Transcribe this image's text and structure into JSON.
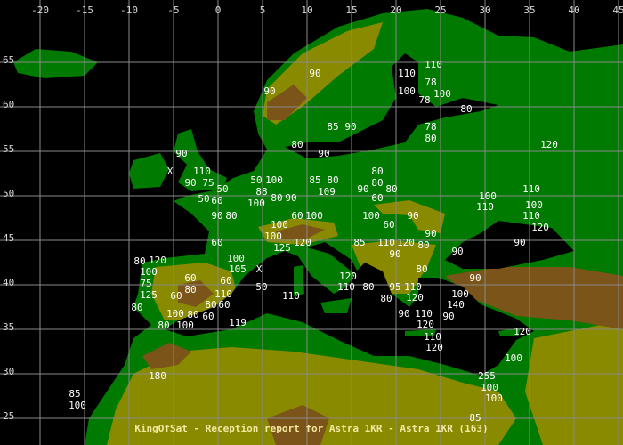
{
  "caption": "KingOfSat - Reception report for Astra 1KR - Astra 1KR (163)",
  "colors": {
    "water": "#000000",
    "lowland": "#007a00",
    "darkland": "#006000",
    "upland": "#8a8a00",
    "mountain": "#7a5418",
    "grid": "#8a8a8a",
    "label": "#ffffff",
    "caption": "#f4e8a0"
  },
  "grid": {
    "longitudes": [
      "-20",
      "-15",
      "-10",
      "-5",
      "0",
      "5",
      "10",
      "15",
      "20",
      "25",
      "30",
      "35",
      "40",
      "45"
    ],
    "latitudes": [
      "65",
      "60",
      "55",
      "50",
      "45",
      "40",
      "35",
      "30",
      "25"
    ]
  },
  "reports": [
    {
      "v": "110",
      "lon": 24.2,
      "lat": 64.8
    },
    {
      "v": "90",
      "lon": 10.9,
      "lat": 63.8
    },
    {
      "v": "110",
      "lon": 21.2,
      "lat": 63.8
    },
    {
      "v": "78",
      "lon": 23.9,
      "lat": 62.8
    },
    {
      "v": "90",
      "lon": 5.8,
      "lat": 61.8
    },
    {
      "v": "100",
      "lon": 21.2,
      "lat": 61.8
    },
    {
      "v": "100",
      "lon": 25.2,
      "lat": 61.8
    },
    {
      "v": "78",
      "lon": 22.9,
      "lat": 60.8
    },
    {
      "v": "80",
      "lon": 27.9,
      "lat": 59.8
    },
    {
      "v": "85",
      "lon": 12.9,
      "lat": 57.8
    },
    {
      "v": "90",
      "lon": 14.9,
      "lat": 57.8
    },
    {
      "v": "78",
      "lon": 23.9,
      "lat": 57.8
    },
    {
      "v": "80",
      "lon": 23.9,
      "lat": 56.8
    },
    {
      "v": "120",
      "lon": 37.2,
      "lat": 55.8
    },
    {
      "v": "80",
      "lon": 8.9,
      "lat": 55.8
    },
    {
      "v": "90",
      "lon": 11.9,
      "lat": 54.8
    },
    {
      "v": "90",
      "lon": -4.1,
      "lat": 54.8
    },
    {
      "v": "X",
      "lon": -5.4,
      "lat": 52.8
    },
    {
      "v": "110",
      "lon": -1.8,
      "lat": 52.8
    },
    {
      "v": "90",
      "lon": -3.1,
      "lat": 51.8
    },
    {
      "v": "75",
      "lon": -1.1,
      "lat": 51.8
    },
    {
      "v": "50",
      "lon": -0.1,
      "lat": 50.8
    },
    {
      "v": "50",
      "lon": 4.3,
      "lat": 51.8
    },
    {
      "v": "100",
      "lon": 5.1,
      "lat": 51.8
    },
    {
      "v": "88",
      "lon": 4.9,
      "lat": 50.8
    },
    {
      "v": "80",
      "lon": 17.9,
      "lat": 52.8
    },
    {
      "v": "85",
      "lon": 10.9,
      "lat": 51.8
    },
    {
      "v": "80",
      "lon": 12.9,
      "lat": 51.8
    },
    {
      "v": "80",
      "lon": 17.9,
      "lat": 51.8
    },
    {
      "v": "109",
      "lon": 12.2,
      "lat": 50.8
    },
    {
      "v": "90",
      "lon": 16.9,
      "lat": 50.8
    },
    {
      "v": "80",
      "lon": 18.9,
      "lat": 50.8
    },
    {
      "v": "110",
      "lon": 35.2,
      "lat": 50.8
    },
    {
      "v": "60",
      "lon": -0.1,
      "lat": 49.8
    },
    {
      "v": "50",
      "lon": -0.1,
      "lat": 49.7
    },
    {
      "v": "100",
      "lon": 4.3,
      "lat": 49.8
    },
    {
      "v": "80",
      "lon": 6.0,
      "lat": 49.8
    },
    {
      "v": "90",
      "lon": 7.9,
      "lat": 49.8
    },
    {
      "v": "60",
      "lon": 17.9,
      "lat": 49.8
    },
    {
      "v": "90",
      "lon": -0.1,
      "lat": 47.8
    },
    {
      "v": "80",
      "lon": 0.9,
      "lat": 47.8
    },
    {
      "v": "60",
      "lon": 8.9,
      "lat": 47.8
    },
    {
      "v": "100",
      "lon": 10.2,
      "lat": 47.8
    },
    {
      "v": "100",
      "lon": 17.2,
      "lat": 47.8
    },
    {
      "v": "90",
      "lon": 21.9,
      "lat": 47.8
    },
    {
      "v": "110",
      "lon": 30.0,
      "lat": 48.8
    },
    {
      "v": "100",
      "lon": 30.3,
      "lat": 48.8
    },
    {
      "v": "110",
      "lon": 35.2,
      "lat": 47.8
    },
    {
      "v": "100",
      "lon": 35.5,
      "lat": 47.8
    },
    {
      "v": "100",
      "lon": 7.2,
      "lat": 46.8
    },
    {
      "v": "60",
      "lon": 18.9,
      "lat": 46.8
    },
    {
      "v": "120",
      "lon": 36.2,
      "lat": 46.8
    },
    {
      "v": "100",
      "lon": 6.2,
      "lat": 45.8
    },
    {
      "v": "90",
      "lon": 23.9,
      "lat": 45.8
    },
    {
      "v": "60",
      "lon": -0.1,
      "lat": 44.8
    },
    {
      "v": "125",
      "lon": 7.2,
      "lat": 44.8
    },
    {
      "v": "120",
      "lon": 9.2,
      "lat": 44.8
    },
    {
      "v": "85",
      "lon": 15.9,
      "lat": 44.8
    },
    {
      "v": "110",
      "lon": 18.9,
      "lat": 44.8
    },
    {
      "v": "120",
      "lon": 20.2,
      "lat": 44.8
    },
    {
      "v": "80",
      "lon": 21.9,
      "lat": 44.8
    },
    {
      "v": "90",
      "lon": 33.9,
      "lat": 44.8
    },
    {
      "v": "90",
      "lon": 19.9,
      "lat": 43.8
    },
    {
      "v": "90",
      "lon": 26.9,
      "lat": 43.8
    },
    {
      "v": "120",
      "lon": -6.8,
      "lat": 42.8
    },
    {
      "v": "80",
      "lon": 22.9,
      "lat": 41.8
    },
    {
      "v": "100",
      "lon": -7.8,
      "lat": 41.8
    },
    {
      "v": "80",
      "lon": -7.6,
      "lat": 41.8
    },
    {
      "v": "105",
      "lon": 2.2,
      "lat": 41.8
    },
    {
      "v": "100",
      "lon": 2.0,
      "lat": 41.8
    },
    {
      "v": "X",
      "lon": 4.6,
      "lat": 41.8
    },
    {
      "v": "75",
      "lon": -8.1,
      "lat": 40.8
    },
    {
      "v": "60",
      "lon": -3.1,
      "lat": 40.8
    },
    {
      "v": "60",
      "lon": 0.9,
      "lat": 40.8
    },
    {
      "v": "90",
      "lon": 28.9,
      "lat": 40.8
    },
    {
      "v": "125",
      "lon": -7.8,
      "lat": 39.8
    },
    {
      "v": "80",
      "lon": -3.1,
      "lat": 39.8
    },
    {
      "v": "50",
      "lon": 4.9,
      "lat": 39.8
    },
    {
      "v": "110",
      "lon": 14.4,
      "lat": 39.8
    },
    {
      "v": "120",
      "lon": 14.6,
      "lat": 39.8
    },
    {
      "v": "80",
      "lon": 16.9,
      "lat": 39.8
    },
    {
      "v": "95",
      "lon": 19.9,
      "lat": 39.8
    },
    {
      "v": "110",
      "lon": 21.9,
      "lat": 39.8
    },
    {
      "v": "120",
      "lon": 22.1,
      "lat": 39.8
    },
    {
      "v": "60",
      "lon": -4.1,
      "lat": 38.8
    },
    {
      "v": "110",
      "lon": 8.2,
      "lat": 38.8
    },
    {
      "v": "80",
      "lon": 18.9,
      "lat": 38.8
    },
    {
      "v": "80",
      "lon": -9.1,
      "lat": 37.8
    },
    {
      "v": "80",
      "lon": -0.8,
      "lat": 37.8
    },
    {
      "v": "60",
      "lon": -0.2,
      "lat": 37.8
    },
    {
      "v": "110",
      "lon": 0.6,
      "lat": 37.8
    },
    {
      "v": "140",
      "lon": 26.7,
      "lat": 37.8
    },
    {
      "v": "100",
      "lon": 27.2,
      "lat": 37.8
    },
    {
      "v": "100",
      "lon": -4.8,
      "lat": 36.8
    },
    {
      "v": "60",
      "lon": -1.1,
      "lat": 36.8
    },
    {
      "v": "90",
      "lon": 20.9,
      "lat": 36.8
    },
    {
      "v": "110",
      "lon": 23.1,
      "lat": 36.8
    },
    {
      "v": "120",
      "lon": 23.3,
      "lat": 36.8
    },
    {
      "v": "90",
      "lon": 25.9,
      "lat": 36.8
    },
    {
      "v": "80",
      "lon": -6.1,
      "lat": 35.8
    },
    {
      "v": "100",
      "lon": -3.7,
      "lat": 35.8
    },
    {
      "v": "80",
      "lon": -3.1,
      "lat": 35.8
    },
    {
      "v": "119",
      "lon": 2.2,
      "lat": 35.8
    },
    {
      "v": "110",
      "lon": 24.1,
      "lat": 34.8
    },
    {
      "v": "120",
      "lon": 24.3,
      "lat": 34.8
    },
    {
      "v": "120",
      "lon": 34.2,
      "lat": 34.8
    },
    {
      "v": "100",
      "lon": 33.2,
      "lat": 31.8
    },
    {
      "v": "180",
      "lon": -6.8,
      "lat": 29.8
    },
    {
      "v": "255",
      "lon": 30.2,
      "lat": 29.8
    },
    {
      "v": "100",
      "lon": 30.5,
      "lat": 28.8
    },
    {
      "v": "100",
      "lon": 31.0,
      "lat": 28.8
    },
    {
      "v": "85",
      "lon": -16.1,
      "lat": 27.8
    },
    {
      "v": "100",
      "lon": -15.8,
      "lat": 26.8
    },
    {
      "v": "85",
      "lon": 28.9,
      "lat": 24.8
    }
  ]
}
